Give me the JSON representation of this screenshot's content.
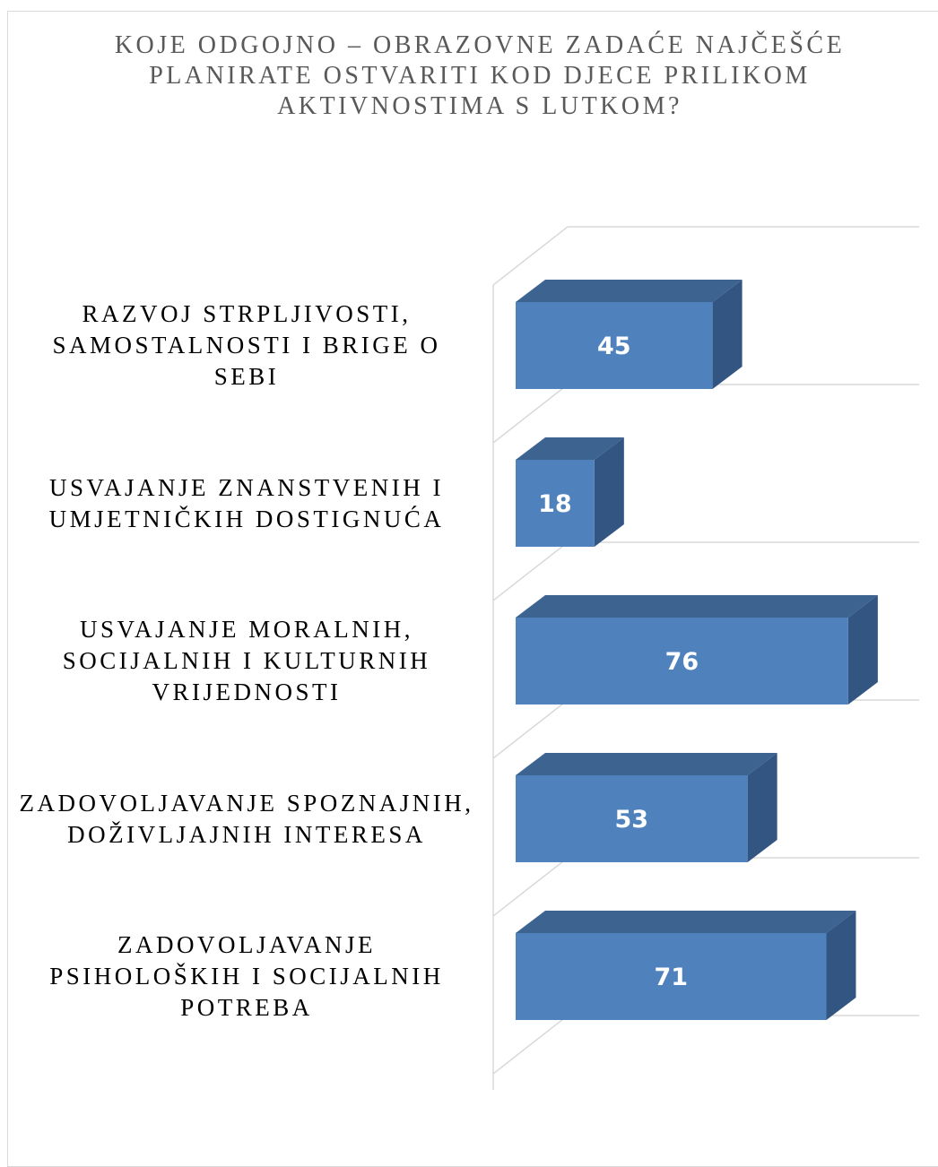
{
  "chart_data": {
    "type": "bar3d",
    "title": "KOJE ODGOJNO – OBRAZOVNE ZADAĆE NAJČEŠĆE PLANIRATE OSTVARITI KOD DJECE PRILIKOM AKTIVNOSTIMA S LUTKOM?",
    "categories": [
      "RAZVOJ STRPLJIVOSTI, SAMOSTALNOSTI I BRIGE O SEBI",
      "USVAJANJE ZNANSTVENIH I UMJETNIČKIH DOSTIGNUĆA",
      "USVAJANJE MORALNIH, SOCIJALNIH I KULTURNIH VRIJEDNOSTI",
      "ZADOVOLJAVANJE SPOZNAJNIH, DOŽIVLJAJNIH INTERESA",
      "ZADOVOLJAVANJE PSIHOLOŠKIH I SOCIJALNIH POTREBA"
    ],
    "values": [
      45,
      18,
      76,
      53,
      71
    ],
    "color": "#4f81bd"
  }
}
